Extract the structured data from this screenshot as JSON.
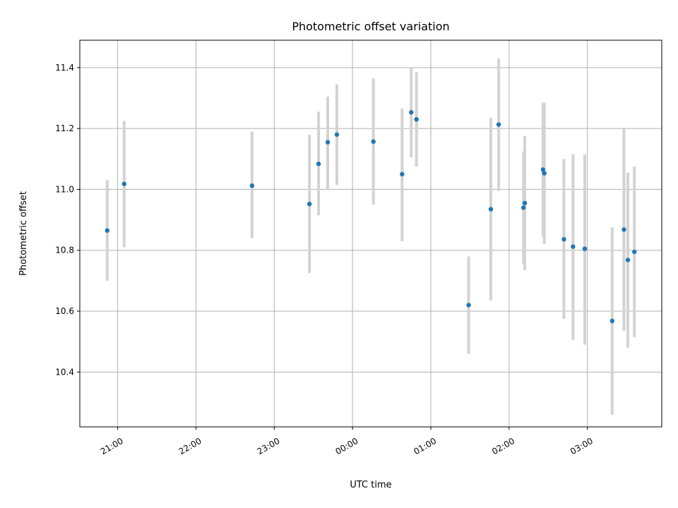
{
  "chart_data": {
    "type": "scatter",
    "title": "Photometric offset variation",
    "xlabel": "UTC time",
    "ylabel": "Photometric offset",
    "x_base_date": "2000-01-01T00:00",
    "xlim": [
      "2000-01-01T20:31",
      "2000-01-02T03:57"
    ],
    "ylim": [
      10.22,
      11.49
    ],
    "x_ticks": [
      {
        "time": "2000-01-01T21:00",
        "label": "21:00"
      },
      {
        "time": "2000-01-01T22:00",
        "label": "22:00"
      },
      {
        "time": "2000-01-01T23:00",
        "label": "23:00"
      },
      {
        "time": "2000-01-02T00:00",
        "label": "00:00"
      },
      {
        "time": "2000-01-02T01:00",
        "label": "01:00"
      },
      {
        "time": "2000-01-02T02:00",
        "label": "02:00"
      },
      {
        "time": "2000-01-02T03:00",
        "label": "03:00"
      }
    ],
    "y_ticks": [
      {
        "value": 10.4,
        "label": "10.4"
      },
      {
        "value": 10.6,
        "label": "10.6"
      },
      {
        "value": 10.8,
        "label": "10.8"
      },
      {
        "value": 11.0,
        "label": "11.0"
      },
      {
        "value": 11.2,
        "label": "11.2"
      },
      {
        "value": 11.4,
        "label": "11.4"
      }
    ],
    "grid": true,
    "colors": {
      "points": "#1f77b4",
      "errorbars": "#d3d3d3",
      "grid": "#b0b0b0"
    },
    "points": [
      {
        "time": "2000-01-01T20:52",
        "y": 10.865,
        "lo": 10.7,
        "hi": 11.03
      },
      {
        "time": "2000-01-01T21:05",
        "y": 11.018,
        "lo": 10.81,
        "hi": 11.225
      },
      {
        "time": "2000-01-01T22:43",
        "y": 11.012,
        "lo": 10.84,
        "hi": 11.19
      },
      {
        "time": "2000-01-01T23:27",
        "y": 10.952,
        "lo": 10.725,
        "hi": 11.18
      },
      {
        "time": "2000-01-01T23:34",
        "y": 11.084,
        "lo": 10.915,
        "hi": 11.255
      },
      {
        "time": "2000-01-01T23:41",
        "y": 11.155,
        "lo": 11.0,
        "hi": 11.305
      },
      {
        "time": "2000-01-01T23:48",
        "y": 11.18,
        "lo": 11.015,
        "hi": 11.345
      },
      {
        "time": "2000-01-02T00:16",
        "y": 11.157,
        "lo": 10.95,
        "hi": 11.365
      },
      {
        "time": "2000-01-02T00:38",
        "y": 11.05,
        "lo": 10.83,
        "hi": 11.265
      },
      {
        "time": "2000-01-02T00:45",
        "y": 11.253,
        "lo": 11.105,
        "hi": 11.4
      },
      {
        "time": "2000-01-02T00:49",
        "y": 11.23,
        "lo": 11.075,
        "hi": 11.385
      },
      {
        "time": "2000-01-02T01:29",
        "y": 10.62,
        "lo": 10.46,
        "hi": 10.78
      },
      {
        "time": "2000-01-02T01:46",
        "y": 10.935,
        "lo": 10.635,
        "hi": 11.235
      },
      {
        "time": "2000-01-02T01:52",
        "y": 11.213,
        "lo": 10.995,
        "hi": 11.43
      },
      {
        "time": "2000-01-02T02:11",
        "y": 10.94,
        "lo": 10.755,
        "hi": 11.125
      },
      {
        "time": "2000-01-02T02:12",
        "y": 10.955,
        "lo": 10.735,
        "hi": 11.175
      },
      {
        "time": "2000-01-02T02:26",
        "y": 11.065,
        "lo": 10.845,
        "hi": 11.285
      },
      {
        "time": "2000-01-02T02:27",
        "y": 11.053,
        "lo": 10.82,
        "hi": 11.285
      },
      {
        "time": "2000-01-02T02:42",
        "y": 10.836,
        "lo": 10.575,
        "hi": 11.1
      },
      {
        "time": "2000-01-02T02:49",
        "y": 10.812,
        "lo": 10.505,
        "hi": 11.115
      },
      {
        "time": "2000-01-02T02:58",
        "y": 10.805,
        "lo": 10.49,
        "hi": 11.115
      },
      {
        "time": "2000-01-02T03:19",
        "y": 10.568,
        "lo": 10.26,
        "hi": 10.875
      },
      {
        "time": "2000-01-02T03:28",
        "y": 10.868,
        "lo": 10.535,
        "hi": 11.2
      },
      {
        "time": "2000-01-02T03:31",
        "y": 10.768,
        "lo": 10.48,
        "hi": 11.055
      },
      {
        "time": "2000-01-02T03:36",
        "y": 10.795,
        "lo": 10.515,
        "hi": 11.075
      }
    ]
  }
}
